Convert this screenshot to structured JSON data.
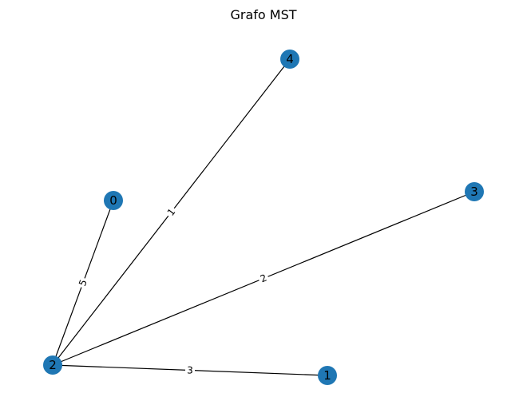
{
  "title": "Grafo MST",
  "colors": {
    "node_fill": "#1f77b4",
    "edge_stroke": "#000000",
    "label_text": "#000000",
    "background": "#ffffff"
  },
  "graph": {
    "nodes": [
      {
        "id": "0"
      },
      {
        "id": "1"
      },
      {
        "id": "2"
      },
      {
        "id": "3"
      },
      {
        "id": "4"
      }
    ],
    "edges": [
      {
        "source": "2",
        "target": "0",
        "weight": "5"
      },
      {
        "source": "2",
        "target": "4",
        "weight": "1"
      },
      {
        "source": "2",
        "target": "3",
        "weight": "2"
      },
      {
        "source": "2",
        "target": "1",
        "weight": "3"
      }
    ]
  }
}
